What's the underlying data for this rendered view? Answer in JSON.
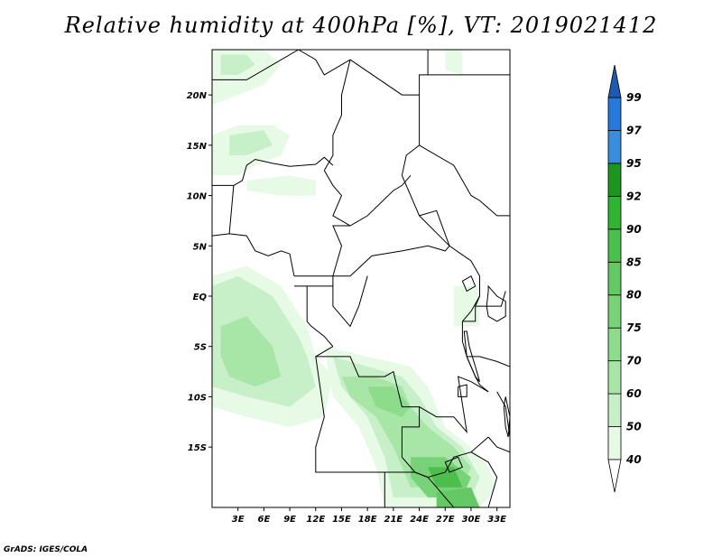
{
  "title": "Relative humidity at 400hPa [%], VT: 2019021412",
  "credit": "GrADS: IGES/COLA",
  "map": {
    "lon_range": [
      0,
      34.5
    ],
    "lat_range": [
      -21,
      24.5
    ],
    "lon_ticks": [
      {
        "value": 3,
        "label": "3E"
      },
      {
        "value": 6,
        "label": "6E"
      },
      {
        "value": 9,
        "label": "9E"
      },
      {
        "value": 12,
        "label": "12E"
      },
      {
        "value": 15,
        "label": "15E"
      },
      {
        "value": 18,
        "label": "18E"
      },
      {
        "value": 21,
        "label": "21E"
      },
      {
        "value": 24,
        "label": "24E"
      },
      {
        "value": 27,
        "label": "27E"
      },
      {
        "value": 30,
        "label": "30E"
      },
      {
        "value": 33,
        "label": "33E"
      }
    ],
    "lat_ticks": [
      {
        "value": 20,
        "label": "20N"
      },
      {
        "value": 15,
        "label": "15N"
      },
      {
        "value": 10,
        "label": "10N"
      },
      {
        "value": 5,
        "label": "5N"
      },
      {
        "value": 0,
        "label": "EQ"
      },
      {
        "value": -5,
        "label": "5S"
      },
      {
        "value": -10,
        "label": "10S"
      },
      {
        "value": -15,
        "label": "15S"
      }
    ]
  },
  "colorbar": {
    "levels": [
      "40",
      "50",
      "60",
      "70",
      "75",
      "80",
      "85",
      "90",
      "92",
      "95",
      "97",
      "99"
    ],
    "colors": [
      "#e6fae6",
      "#c8f0c8",
      "#a8e6a8",
      "#8cdc8c",
      "#78d278",
      "#64c864",
      "#4cbe4c",
      "#32b432",
      "#1e961e",
      "#3c8cdc",
      "#2878dc",
      "#1e5ab4"
    ]
  },
  "humidity_areas": [
    {
      "name": "northwest-sahara",
      "level": "40",
      "points": [
        [
          0,
          24.5
        ],
        [
          6,
          24.5
        ],
        [
          8,
          23
        ],
        [
          6,
          21
        ],
        [
          3,
          20
        ],
        [
          0,
          19
        ]
      ]
    },
    {
      "name": "northwest-inner",
      "level": "50",
      "points": [
        [
          1,
          24
        ],
        [
          4,
          24
        ],
        [
          5,
          23
        ],
        [
          3,
          22
        ],
        [
          1,
          22
        ]
      ]
    },
    {
      "name": "west-africa",
      "level": "40",
      "points": [
        [
          0,
          16
        ],
        [
          3,
          17
        ],
        [
          7,
          17
        ],
        [
          9,
          16
        ],
        [
          8,
          14
        ],
        [
          5,
          13
        ],
        [
          3,
          12
        ],
        [
          0,
          12
        ]
      ]
    },
    {
      "name": "west-africa-inner",
      "level": "50",
      "points": [
        [
          2,
          16
        ],
        [
          6,
          16.5
        ],
        [
          7,
          15
        ],
        [
          4,
          14
        ],
        [
          2,
          14
        ]
      ]
    },
    {
      "name": "sahel-band",
      "level": "40",
      "points": [
        [
          4,
          11.5
        ],
        [
          9,
          12
        ],
        [
          12,
          11.5
        ],
        [
          12,
          10
        ],
        [
          8,
          10
        ],
        [
          4,
          10.5
        ]
      ]
    },
    {
      "name": "northeast-corner",
      "level": "40",
      "points": [
        [
          27,
          24.5
        ],
        [
          29,
          24.5
        ],
        [
          29,
          22
        ],
        [
          27,
          22.5
        ]
      ]
    },
    {
      "name": "atlantic-band",
      "level": "40",
      "points": [
        [
          0,
          2
        ],
        [
          4,
          3
        ],
        [
          8,
          1
        ],
        [
          11,
          -3
        ],
        [
          12,
          -6
        ],
        [
          14,
          -8
        ],
        [
          13,
          -12
        ],
        [
          9,
          -13
        ],
        [
          4,
          -12
        ],
        [
          0,
          -11
        ]
      ]
    },
    {
      "name": "atlantic-inner",
      "level": "50",
      "points": [
        [
          0,
          1
        ],
        [
          3,
          2
        ],
        [
          7,
          0
        ],
        [
          10,
          -4
        ],
        [
          11,
          -6
        ],
        [
          12,
          -9
        ],
        [
          9,
          -11
        ],
        [
          4,
          -10
        ],
        [
          0,
          -9
        ]
      ]
    },
    {
      "name": "atlantic-core",
      "level": "60",
      "points": [
        [
          1,
          -3
        ],
        [
          4,
          -2
        ],
        [
          7,
          -5
        ],
        [
          8,
          -8
        ],
        [
          5,
          -9
        ],
        [
          2,
          -8
        ],
        [
          1,
          -6
        ]
      ]
    },
    {
      "name": "angola-congo-band",
      "level": "40",
      "points": [
        [
          13,
          -5
        ],
        [
          18,
          -6
        ],
        [
          23,
          -7
        ],
        [
          25,
          -9
        ],
        [
          27,
          -13
        ],
        [
          30,
          -15
        ],
        [
          32,
          -17
        ],
        [
          33,
          -19
        ],
        [
          31,
          -21
        ],
        [
          20,
          -21
        ],
        [
          19,
          -17
        ],
        [
          17,
          -13
        ],
        [
          14,
          -10
        ]
      ]
    },
    {
      "name": "angola-congo-inner",
      "level": "50",
      "points": [
        [
          14,
          -6
        ],
        [
          18,
          -7
        ],
        [
          22,
          -8
        ],
        [
          24,
          -10
        ],
        [
          26,
          -13
        ],
        [
          29,
          -15
        ],
        [
          31,
          -18
        ],
        [
          30,
          -20
        ],
        [
          21,
          -20
        ],
        [
          20,
          -16
        ],
        [
          18,
          -12
        ],
        [
          15,
          -9
        ]
      ]
    },
    {
      "name": "angola-core",
      "level": "60",
      "points": [
        [
          15,
          -8
        ],
        [
          19,
          -8
        ],
        [
          22,
          -9
        ],
        [
          23,
          -11
        ],
        [
          25,
          -13
        ],
        [
          28,
          -15
        ],
        [
          30,
          -17
        ],
        [
          29,
          -19
        ],
        [
          23,
          -19
        ],
        [
          21,
          -15
        ],
        [
          19,
          -12
        ],
        [
          16,
          -10
        ]
      ]
    },
    {
      "name": "central-core",
      "level": "70",
      "points": [
        [
          18,
          -9
        ],
        [
          21,
          -9
        ],
        [
          23,
          -11
        ],
        [
          22,
          -12
        ],
        [
          19,
          -11
        ]
      ]
    },
    {
      "name": "zambia-core",
      "level": "75",
      "points": [
        [
          23,
          -16
        ],
        [
          27,
          -16
        ],
        [
          30,
          -18
        ],
        [
          29,
          -20
        ],
        [
          25,
          -20
        ],
        [
          23,
          -18
        ]
      ]
    },
    {
      "name": "zambia-max",
      "level": "85",
      "points": [
        [
          25,
          -17
        ],
        [
          28,
          -17
        ],
        [
          29,
          -19
        ],
        [
          26,
          -19
        ]
      ]
    },
    {
      "name": "zimbabwe-max",
      "level": "80",
      "points": [
        [
          26,
          -19.5
        ],
        [
          30,
          -19
        ],
        [
          31,
          -21
        ],
        [
          26,
          -21
        ]
      ]
    },
    {
      "name": "east-africa",
      "level": "40",
      "points": [
        [
          28,
          1
        ],
        [
          31,
          1
        ],
        [
          31,
          -3
        ],
        [
          28,
          -3
        ]
      ]
    }
  ],
  "borders": [
    [
      [
        0,
        21.5
      ],
      [
        4,
        21.5
      ],
      [
        7,
        23
      ],
      [
        10,
        24.5
      ]
    ],
    [
      [
        10,
        24.5
      ],
      [
        12,
        23.5
      ],
      [
        13,
        22
      ],
      [
        15,
        23
      ],
      [
        16,
        23.5
      ]
    ],
    [
      [
        16,
        23.5
      ],
      [
        15,
        20
      ],
      [
        15,
        18
      ],
      [
        14,
        16
      ],
      [
        14,
        14
      ],
      [
        13,
        12.5
      ]
    ],
    [
      [
        13,
        12.5
      ],
      [
        14,
        11
      ],
      [
        15,
        10
      ],
      [
        14,
        8
      ],
      [
        15,
        7.5
      ],
      [
        16,
        7
      ],
      [
        18,
        8
      ],
      [
        21,
        10.5
      ],
      [
        22,
        11
      ],
      [
        23,
        12
      ]
    ],
    [
      [
        16,
        23.5
      ],
      [
        22,
        20
      ],
      [
        24,
        20
      ],
      [
        24,
        15
      ],
      [
        22.5,
        14
      ],
      [
        22,
        12
      ],
      [
        23.5,
        9
      ],
      [
        24,
        8
      ]
    ],
    [
      [
        24,
        8
      ],
      [
        26,
        8.5
      ],
      [
        27.5,
        5
      ],
      [
        27,
        4.5
      ],
      [
        25,
        5
      ],
      [
        22,
        4.5
      ],
      [
        18.5,
        4
      ],
      [
        16,
        2
      ],
      [
        14,
        2
      ],
      [
        15,
        5
      ],
      [
        14,
        7
      ],
      [
        16,
        7
      ]
    ],
    [
      [
        24,
        20
      ],
      [
        24,
        22
      ],
      [
        25,
        22
      ],
      [
        25,
        24.5
      ]
    ],
    [
      [
        25,
        22
      ],
      [
        34.5,
        22
      ]
    ],
    [
      [
        24,
        15
      ],
      [
        28,
        13
      ],
      [
        30,
        10
      ],
      [
        31,
        9.5
      ],
      [
        33,
        8
      ],
      [
        34.5,
        8
      ]
    ],
    [
      [
        24,
        8
      ],
      [
        27.5,
        5
      ],
      [
        30,
        3.5
      ],
      [
        31,
        2
      ],
      [
        31,
        0
      ],
      [
        30,
        -1.5
      ],
      [
        29,
        -2.5
      ]
    ],
    [
      [
        0,
        6
      ],
      [
        2,
        6.2
      ],
      [
        4,
        6
      ],
      [
        5,
        4.5
      ],
      [
        6.5,
        4
      ],
      [
        8,
        4.5
      ],
      [
        9,
        4.2
      ],
      [
        9.5,
        2
      ]
    ],
    [
      [
        2,
        6.2
      ],
      [
        2.5,
        11
      ],
      [
        3.5,
        11.5
      ],
      [
        4,
        13
      ],
      [
        5,
        13.6
      ],
      [
        7,
        13.2
      ],
      [
        9,
        12.9
      ],
      [
        12,
        13.1
      ],
      [
        13,
        13.8
      ],
      [
        14,
        13
      ]
    ],
    [
      [
        0,
        11
      ],
      [
        2,
        11
      ],
      [
        2.5,
        11
      ]
    ],
    [
      [
        9.5,
        2
      ],
      [
        11,
        2
      ],
      [
        13,
        2
      ],
      [
        14,
        2
      ],
      [
        14,
        1
      ]
    ],
    [
      [
        9.5,
        1
      ],
      [
        11,
        1
      ],
      [
        11,
        -2.5
      ],
      [
        11.5,
        -3
      ],
      [
        13,
        -4
      ],
      [
        14,
        -5
      ]
    ],
    [
      [
        11,
        1
      ],
      [
        14,
        1
      ],
      [
        14,
        -1
      ],
      [
        15,
        -2
      ],
      [
        16,
        -3
      ],
      [
        17,
        -1
      ],
      [
        18,
        2
      ]
    ],
    [
      [
        14,
        -5
      ],
      [
        12,
        -6
      ],
      [
        12.5,
        -9
      ],
      [
        13,
        -12
      ],
      [
        12,
        -15
      ],
      [
        12,
        -17.5
      ],
      [
        14,
        -17.5
      ],
      [
        20,
        -17.5
      ],
      [
        23.5,
        -17.5
      ],
      [
        25,
        -18
      ]
    ],
    [
      [
        12,
        -6
      ],
      [
        16,
        -6
      ],
      [
        17,
        -8
      ],
      [
        20,
        -8
      ],
      [
        21,
        -7.5
      ],
      [
        22,
        -11
      ],
      [
        24,
        -11
      ],
      [
        24,
        -13
      ],
      [
        22,
        -13
      ],
      [
        22,
        -16
      ],
      [
        23.5,
        -17.5
      ]
    ],
    [
      [
        24,
        -11
      ],
      [
        26,
        -12
      ],
      [
        28,
        -12
      ],
      [
        29,
        -13
      ],
      [
        29.5,
        -13.5
      ],
      [
        28.5,
        -8
      ],
      [
        30,
        -8.5
      ],
      [
        32,
        -9.5
      ]
    ],
    [
      [
        23.5,
        -17.5
      ],
      [
        25,
        -18
      ],
      [
        27,
        -17.5
      ],
      [
        28,
        -16
      ],
      [
        30,
        -15.5
      ],
      [
        32,
        -14
      ]
    ],
    [
      [
        20,
        -17.5
      ],
      [
        20,
        -21
      ]
    ],
    [
      [
        25,
        -18
      ],
      [
        26,
        -19
      ],
      [
        27,
        -20
      ],
      [
        29,
        -22
      ],
      [
        31,
        -22
      ]
    ],
    [
      [
        29,
        -2.5
      ],
      [
        30.5,
        -2.5
      ],
      [
        30.5,
        -1
      ],
      [
        31,
        0
      ]
    ],
    [
      [
        30.5,
        -1
      ],
      [
        33.5,
        -1
      ],
      [
        34,
        0.5
      ]
    ],
    [
      [
        29,
        -2.5
      ],
      [
        29,
        -4.5
      ],
      [
        29.5,
        -6
      ],
      [
        30.5,
        -8
      ],
      [
        31,
        -8.8
      ],
      [
        32,
        -9.5
      ]
    ],
    [
      [
        33,
        -9.5
      ],
      [
        34,
        -11
      ],
      [
        34.5,
        -14
      ]
    ],
    [
      [
        29.5,
        -6
      ],
      [
        31,
        -6
      ],
      [
        33,
        -6.5
      ],
      [
        34.5,
        -7
      ]
    ],
    [
      [
        32,
        -14
      ],
      [
        33,
        -15
      ],
      [
        34.5,
        -15.5
      ]
    ],
    [
      [
        30,
        -15.5
      ],
      [
        32,
        -16.5
      ],
      [
        33,
        -18
      ],
      [
        32,
        -21
      ]
    ]
  ],
  "lakes": [
    [
      [
        32,
        1
      ],
      [
        33,
        0
      ],
      [
        34,
        -0.5
      ],
      [
        34,
        -2
      ],
      [
        33,
        -2.5
      ],
      [
        32,
        -2
      ],
      [
        31.8,
        -1
      ],
      [
        32,
        0.5
      ]
    ],
    [
      [
        29.2,
        -3.5
      ],
      [
        29.5,
        -6
      ],
      [
        30.5,
        -8
      ],
      [
        31,
        -8.5
      ],
      [
        30.5,
        -7
      ],
      [
        29.8,
        -5
      ],
      [
        29.5,
        -3.5
      ]
    ],
    [
      [
        28.5,
        -9
      ],
      [
        29.5,
        -8.8
      ],
      [
        29.5,
        -10
      ],
      [
        28.5,
        -10
      ]
    ],
    [
      [
        34,
        -10
      ],
      [
        34.5,
        -12
      ],
      [
        34.3,
        -14
      ],
      [
        34,
        -13
      ],
      [
        33.8,
        -11
      ]
    ],
    [
      [
        27,
        -16.5
      ],
      [
        28.5,
        -16
      ],
      [
        29,
        -17
      ],
      [
        27.5,
        -17.5
      ]
    ],
    [
      [
        29,
        1.5
      ],
      [
        30,
        2
      ],
      [
        30.5,
        1
      ],
      [
        29.5,
        0.5
      ]
    ]
  ]
}
